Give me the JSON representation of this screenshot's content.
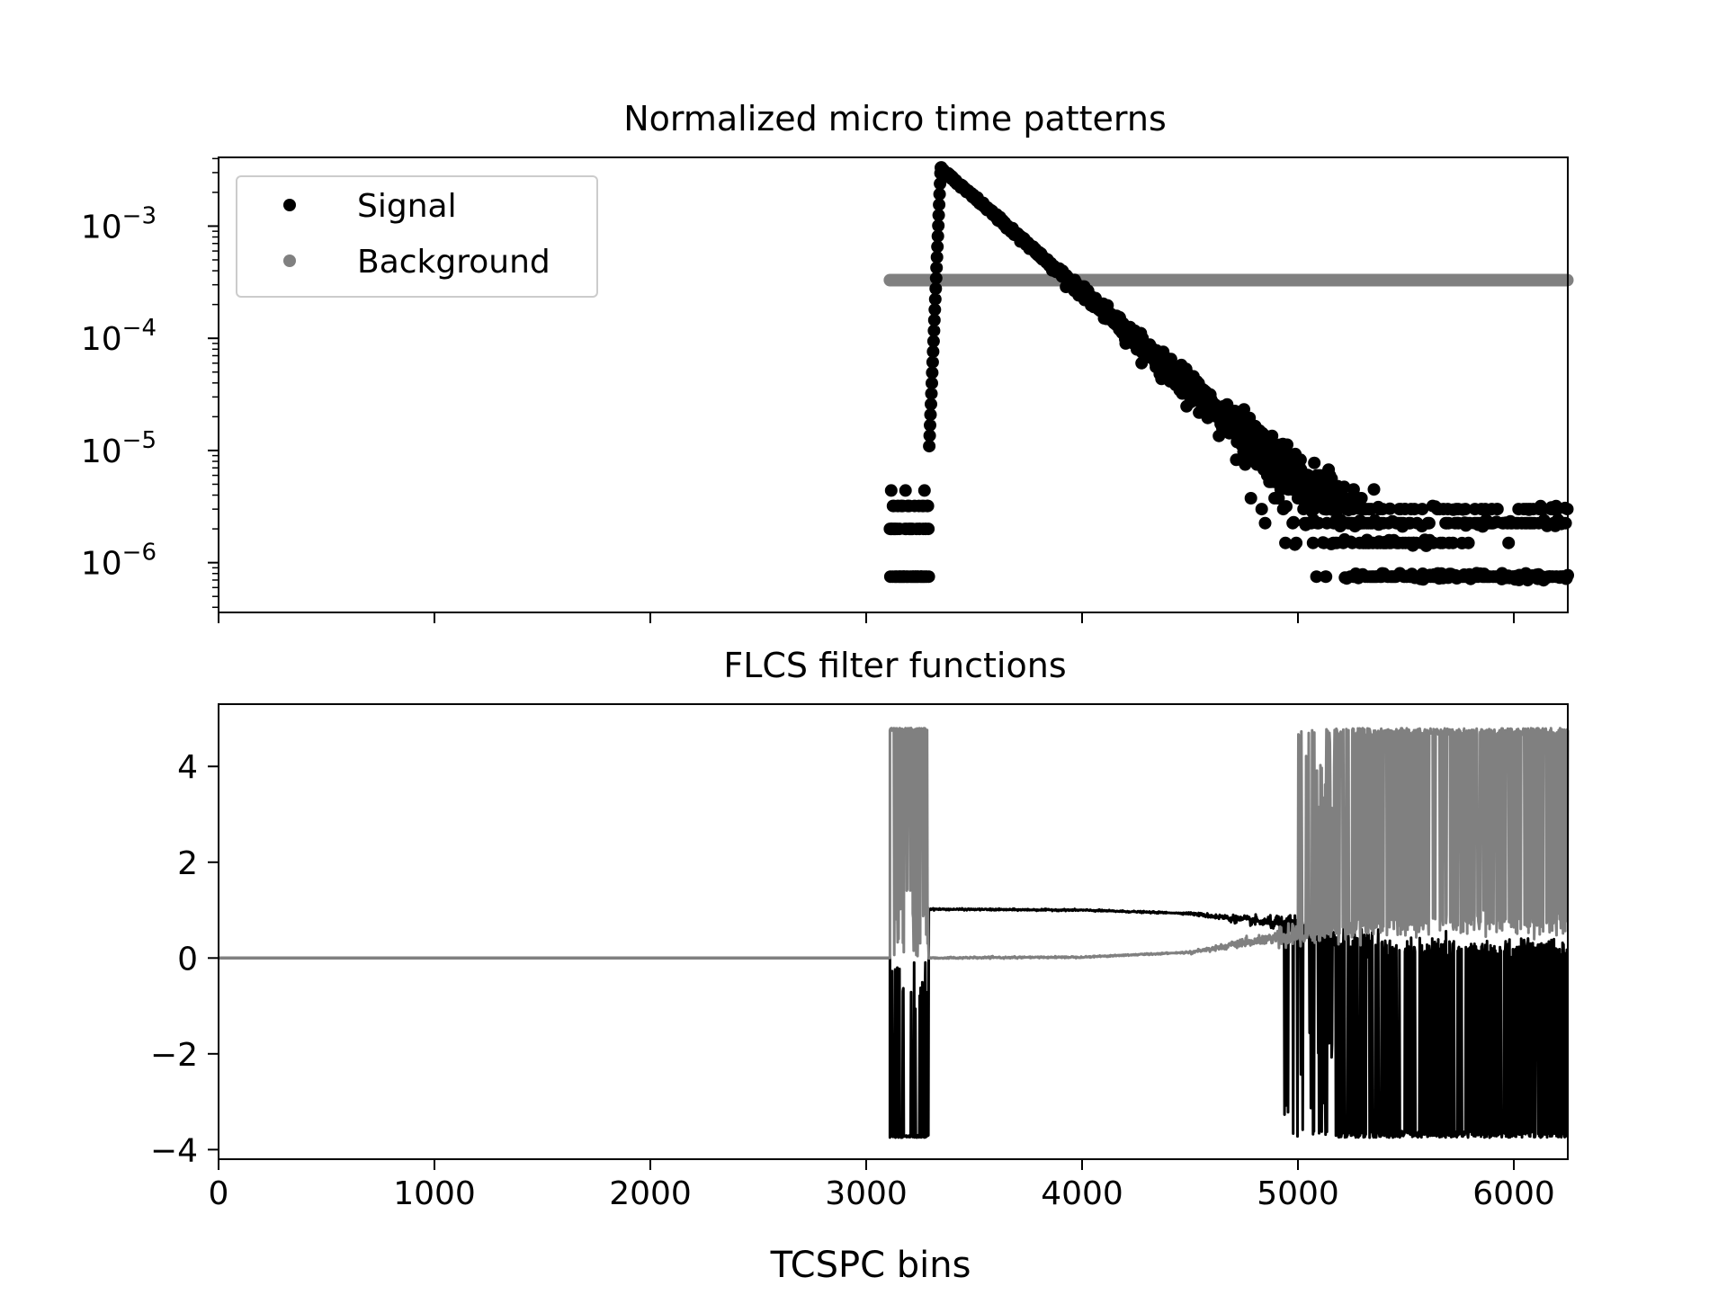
{
  "chart_data": [
    {
      "type": "scatter",
      "title": "Normalized micro time patterns",
      "xlabel": "",
      "ylabel": "",
      "xlim": [
        0,
        6250
      ],
      "ylim": [
        3.6e-07,
        0.0041
      ],
      "yscale": "log",
      "xticks": [
        0,
        1000,
        2000,
        3000,
        4000,
        5000,
        6000
      ],
      "show_xtick_labels": false,
      "yticks": [
        {
          "value": 0.001,
          "base": "10",
          "exp": "−3"
        },
        {
          "value": 0.0001,
          "base": "10",
          "exp": "−4"
        },
        {
          "value": 1e-05,
          "base": "10",
          "exp": "−5"
        },
        {
          "value": 1e-06,
          "base": "10",
          "exp": "−6"
        }
      ],
      "grid": false,
      "legend": {
        "placement": "top-left",
        "entries": [
          "Signal",
          "Background"
        ]
      },
      "series": [
        {
          "name": "Signal",
          "color": "#000000",
          "shape": "instrument-response rise to peak then single-exponential decay; quantized low-count floor levels",
          "x_start": 3110,
          "x_end": 6250,
          "peak_x": 3345,
          "peak_y": 0.0033,
          "decay_to": [
            4000,
            0.00026
          ],
          "floor_levels": [
            7.5e-07,
            2e-06,
            3.2e-06,
            4.4e-06
          ]
        },
        {
          "name": "Background",
          "color": "#808080",
          "shape": "flat",
          "x_start": 3110,
          "x_end": 6250,
          "y": 0.00033
        }
      ]
    },
    {
      "type": "line",
      "title": "FLCS filter functions",
      "xlabel": "TCSPC bins",
      "ylabel": "",
      "xlim": [
        0,
        6250
      ],
      "ylim": [
        -4.2,
        5.3
      ],
      "xticks": [
        0,
        1000,
        2000,
        3000,
        4000,
        5000,
        6000
      ],
      "yticks": [
        {
          "value": 4,
          "label": "4"
        },
        {
          "value": 2,
          "label": "2"
        },
        {
          "value": 0,
          "label": "0"
        },
        {
          "value": -2,
          "label": "−2"
        },
        {
          "value": -4,
          "label": "−4"
        }
      ],
      "grid": false,
      "series": [
        {
          "name": "Signal",
          "color": "#000000",
          "flat_until": 3110,
          "noisy_band": [
            3110,
            3290
          ],
          "noise_range": [
            -3.75,
            0
          ],
          "smooth_segment": {
            "x": [
              3290,
              4000,
              4500,
              4900
            ],
            "y": [
              1.02,
              1.0,
              0.93,
              0.72
            ]
          },
          "noisy_tail_from": 4900
        },
        {
          "name": "Background",
          "color": "#808080",
          "flat_until": 3110,
          "noisy_band": [
            3110,
            3290
          ],
          "noise_range": [
            0,
            4.8
          ],
          "smooth_segment": {
            "x": [
              3290,
              4000,
              4500,
              4900
            ],
            "y": [
              0.0,
              0.02,
              0.12,
              0.42
            ]
          },
          "noisy_tail_from": 4900
        }
      ]
    }
  ]
}
